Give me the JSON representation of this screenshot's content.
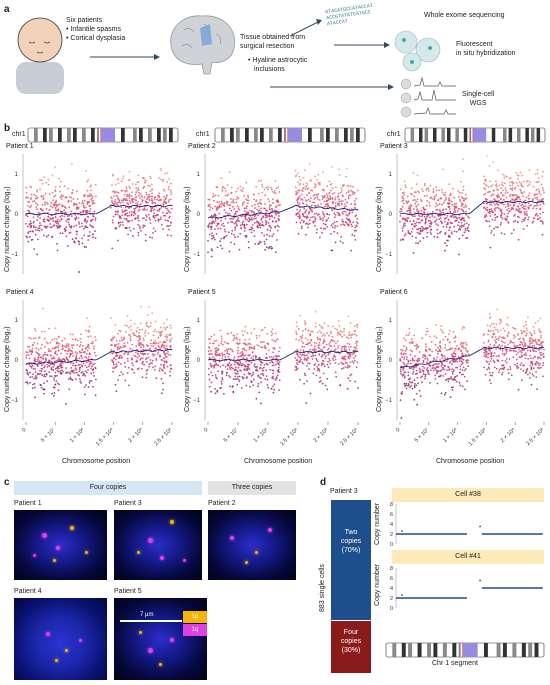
{
  "panel_labels": {
    "a": "a",
    "b": "b",
    "c": "c",
    "d": "d"
  },
  "panel_a": {
    "patient_text": [
      "Six patients",
      "• Infantile spasms",
      "• Cortical dysplasia"
    ],
    "tissue_text": [
      "Tissue obtained from",
      "surgical resection"
    ],
    "inclusion_text": [
      "• Hyaline astrocytic",
      "inclusions"
    ],
    "wes": "Whole exome sequencing",
    "fish": [
      "Fluorescent",
      "in situ hybridization"
    ],
    "scwgs": [
      "Single-cell",
      "WGS"
    ],
    "dna_seq": [
      "GTACATGCCATACCAT",
      "ACCGTATATCATGCC",
      "ATACCAT"
    ]
  },
  "panel_b": {
    "chr_label": "chr1",
    "ylabel": "Copy number change (log₂)",
    "xlabel": "Chromosome position",
    "xticks": [
      "0",
      "5 × 10⁷",
      "1 × 10⁸",
      "1.5 × 10⁸",
      "2 × 10⁸",
      "2.5 × 10⁸"
    ],
    "yticks_a": [
      "1",
      "0",
      "−1"
    ],
    "yticks_b": [
      "1",
      "0",
      "−1"
    ],
    "patients": [
      "Patient 1",
      "Patient 2",
      "Patient 3",
      "Patient 4",
      "Patient 5",
      "Patient 6"
    ]
  },
  "panel_c": {
    "four_copies": "Four copies",
    "three_copies": "Three copies",
    "images": [
      "Patient 1",
      "Patient 3",
      "Patient 2",
      "Patient 4",
      "Patient 5"
    ],
    "scale": "7 μm",
    "legend_1p": "1p",
    "legend_1q": "1q",
    "colors": {
      "p": "#f5b400",
      "q": "#e040e0"
    }
  },
  "panel_d": {
    "patient": "Patient 3",
    "cells_label": "883 single cells",
    "two_copies": [
      "Two",
      "copies",
      "(70%)"
    ],
    "four_copies": [
      "Four",
      "copies",
      "(30%)"
    ],
    "cell1": "Cell #38",
    "cell2": "Cell #41",
    "ylabel": "Copy number",
    "yticks": [
      "8",
      "6",
      "4",
      "2",
      "0"
    ],
    "segment_label": "Chr 1 segment",
    "colors": {
      "two": "#1f4e8c",
      "four": "#8b1a1a"
    }
  },
  "chart_data": [
    {
      "type": "scatter",
      "title": "Patient 1",
      "xlabel": "Chromosome position",
      "ylabel": "Copy number change (log₂)",
      "ylim": [
        -1.5,
        1.5
      ],
      "xlim": [
        0,
        250000000.0
      ],
      "series": [
        {
          "values": [
            [
              0,
              0
            ],
            [
              120000000.0,
              0
            ],
            [
              145000000.0,
              0.2
            ],
            [
              248000000.0,
              0.2
            ]
          ]
        }
      ]
    },
    {
      "type": "scatter",
      "title": "Patient 2",
      "xlabel": "Chromosome position",
      "ylabel": "Copy number change (log₂)",
      "ylim": [
        -1.5,
        1.5
      ],
      "xlim": [
        0,
        250000000.0
      ],
      "series": [
        {
          "values": [
            [
              0,
              -0.1
            ],
            [
              120000000.0,
              0.05
            ],
            [
              145000000.0,
              0.2
            ],
            [
              248000000.0,
              0.1
            ]
          ]
        }
      ]
    },
    {
      "type": "scatter",
      "title": "Patient 3",
      "xlabel": "Chromosome position",
      "ylabel": "Copy number change (log₂)",
      "ylim": [
        -1.5,
        1.5
      ],
      "xlim": [
        0,
        250000000.0
      ],
      "series": [
        {
          "values": [
            [
              0,
              0
            ],
            [
              120000000.0,
              0
            ],
            [
              145000000.0,
              0.3
            ],
            [
              248000000.0,
              0.3
            ]
          ]
        }
      ]
    },
    {
      "type": "scatter",
      "title": "Patient 4",
      "xlabel": "Chromosome position",
      "ylabel": "Copy number change (log₂)",
      "ylim": [
        -1.5,
        1.5
      ],
      "xlim": [
        0,
        250000000.0
      ],
      "series": [
        {
          "values": [
            [
              0,
              -0.1
            ],
            [
              120000000.0,
              0
            ],
            [
              145000000.0,
              0.2
            ],
            [
              248000000.0,
              0.25
            ]
          ]
        }
      ]
    },
    {
      "type": "scatter",
      "title": "Patient 5",
      "xlabel": "Chromosome position",
      "ylabel": "Copy number change (log₂)",
      "ylim": [
        -1.5,
        1.5
      ],
      "xlim": [
        0,
        250000000.0
      ],
      "series": [
        {
          "values": [
            [
              0,
              0
            ],
            [
              120000000.0,
              0
            ],
            [
              145000000.0,
              0.2
            ],
            [
              248000000.0,
              0.2
            ]
          ]
        }
      ]
    },
    {
      "type": "scatter",
      "title": "Patient 6",
      "xlabel": "Chromosome position",
      "ylabel": "Copy number change (log₂)",
      "ylim": [
        -1.5,
        1.5
      ],
      "xlim": [
        0,
        250000000.0
      ],
      "series": [
        {
          "values": [
            [
              0,
              -0.2
            ],
            [
              120000000.0,
              0.1
            ],
            [
              145000000.0,
              0.3
            ],
            [
              248000000.0,
              0.3
            ]
          ]
        }
      ]
    },
    {
      "type": "scatter",
      "title": "Cell #38",
      "ylabel": "Copy number",
      "ylim": [
        0,
        8
      ],
      "series": [
        {
          "values": [
            [
              0,
              2
            ],
            [
              120000000.0,
              2
            ],
            [
              145000000.0,
              2
            ],
            [
              248000000.0,
              2
            ]
          ]
        }
      ]
    },
    {
      "type": "scatter",
      "title": "Cell #41",
      "ylabel": "Copy number",
      "ylim": [
        0,
        8
      ],
      "series": [
        {
          "values": [
            [
              0,
              2
            ],
            [
              120000000.0,
              2
            ],
            [
              145000000.0,
              4
            ],
            [
              248000000.0,
              4
            ]
          ]
        }
      ]
    }
  ]
}
